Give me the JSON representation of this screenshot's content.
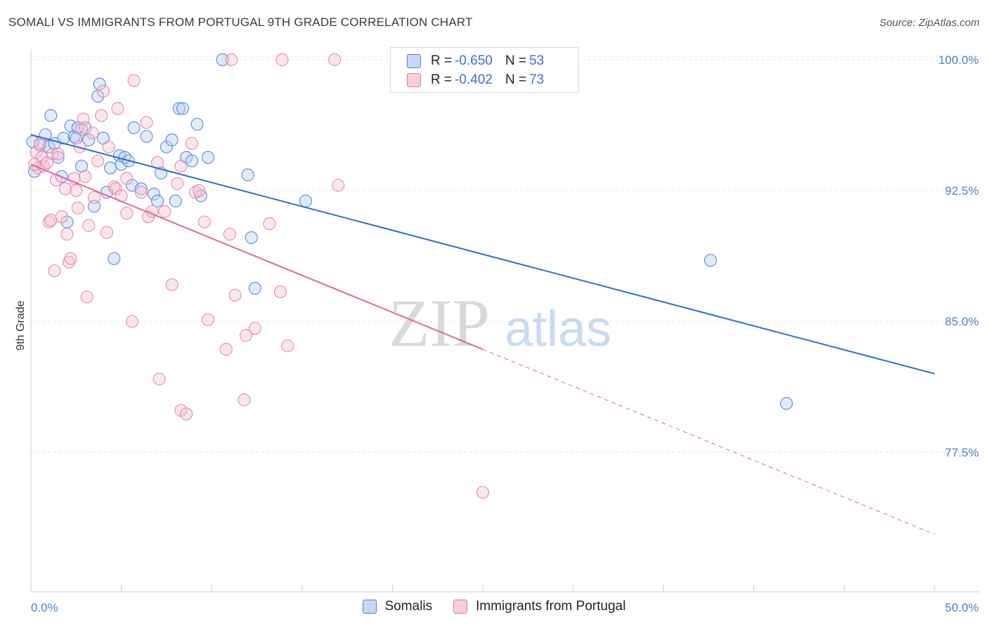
{
  "header": {
    "title": "SOMALI VS IMMIGRANTS FROM PORTUGAL 9TH GRADE CORRELATION CHART",
    "source": "Source: ZipAtlas.com"
  },
  "watermark": {
    "zip": "ZIP",
    "atlas": "atlas"
  },
  "colors": {
    "blue": "#4a7fd4",
    "blue_fill": "#b8d0f3",
    "blue_line": "#2a6fd1",
    "pink": "#e0779d",
    "pink_fill": "#f7c0d2",
    "pink_line": "#e0679a"
  },
  "legend": {
    "rows": [
      {
        "r_label": "R = ",
        "r_value": "-0.650",
        "n_label": "N = ",
        "n_value": "53"
      },
      {
        "r_label": "R = ",
        "r_value": "-0.402",
        "n_label": "N = ",
        "n_value": "73"
      }
    ]
  },
  "bottom_legend": [
    {
      "label": "Somalis"
    },
    {
      "label": "Immigrants from Portugal"
    }
  ],
  "chart_data": {
    "type": "scatter",
    "title": "SOMALI VS IMMIGRANTS FROM PORTUGAL 9TH GRADE CORRELATION CHART",
    "ylabel": "9th Grade",
    "xlabel": "",
    "x_tick_labels": [
      "0.0%",
      "50.0%"
    ],
    "y_tick_labels": [
      "100.0%",
      "92.5%",
      "85.0%",
      "77.5%"
    ],
    "y_ticks": [
      100.0,
      92.5,
      85.0,
      77.5
    ],
    "xlim": [
      0,
      50
    ],
    "ylim": [
      69.5,
      100.6
    ],
    "grid": true,
    "legend_position": "top-center",
    "series": [
      {
        "name": "Somalis",
        "color": "#4a7fd4",
        "r": -0.65,
        "n": 53,
        "trend": {
          "x": [
            0,
            50
          ],
          "y": [
            95.7,
            82.0
          ],
          "extrapolated": false
        },
        "points": [
          [
            0.2,
            93.6
          ],
          [
            0.5,
            95.1
          ],
          [
            0.8,
            95.7
          ],
          [
            1.0,
            95.0
          ],
          [
            1.1,
            96.8
          ],
          [
            1.3,
            95.2
          ],
          [
            1.5,
            94.4
          ],
          [
            1.7,
            93.3
          ],
          [
            1.8,
            95.5
          ],
          [
            2.0,
            90.7
          ],
          [
            2.2,
            96.2
          ],
          [
            2.4,
            95.6
          ],
          [
            2.6,
            96.1
          ],
          [
            2.8,
            93.9
          ],
          [
            3.0,
            96.1
          ],
          [
            3.2,
            95.4
          ],
          [
            3.5,
            91.6
          ],
          [
            3.7,
            97.9
          ],
          [
            3.8,
            98.6
          ],
          [
            4.0,
            95.5
          ],
          [
            4.2,
            92.4
          ],
          [
            4.4,
            93.8
          ],
          [
            4.6,
            88.6
          ],
          [
            4.9,
            94.5
          ],
          [
            5.0,
            94.0
          ],
          [
            5.2,
            94.4
          ],
          [
            5.4,
            94.2
          ],
          [
            5.6,
            92.8
          ],
          [
            5.7,
            96.1
          ],
          [
            6.1,
            92.6
          ],
          [
            6.4,
            95.6
          ],
          [
            6.8,
            92.3
          ],
          [
            7.0,
            91.9
          ],
          [
            7.2,
            93.5
          ],
          [
            7.5,
            95.0
          ],
          [
            7.8,
            95.4
          ],
          [
            8.0,
            91.9
          ],
          [
            8.2,
            97.2
          ],
          [
            8.4,
            97.2
          ],
          [
            8.6,
            94.4
          ],
          [
            8.9,
            94.2
          ],
          [
            9.2,
            96.3
          ],
          [
            9.4,
            92.2
          ],
          [
            9.8,
            94.4
          ],
          [
            10.6,
            100.0
          ],
          [
            12.0,
            93.4
          ],
          [
            12.2,
            89.8
          ],
          [
            12.4,
            86.9
          ],
          [
            15.2,
            91.9
          ],
          [
            37.6,
            88.5
          ],
          [
            41.8,
            80.3
          ],
          [
            0.1,
            95.3
          ],
          [
            2.5,
            95.5
          ]
        ]
      },
      {
        "name": "Immigrants from Portugal",
        "color": "#e0779d",
        "r": -0.402,
        "n": 73,
        "trend": {
          "x": [
            0,
            25
          ],
          "y": [
            94.0,
            83.4
          ],
          "dashed_to": [
            50,
            72.8
          ]
        },
        "points": [
          [
            0.3,
            94.7
          ],
          [
            0.4,
            93.8
          ],
          [
            0.5,
            95.2
          ],
          [
            0.6,
            94.4
          ],
          [
            0.7,
            93.9
          ],
          [
            0.9,
            94.1
          ],
          [
            1.0,
            90.7
          ],
          [
            1.1,
            90.8
          ],
          [
            1.2,
            94.6
          ],
          [
            1.3,
            87.9
          ],
          [
            1.5,
            94.6
          ],
          [
            1.7,
            91.0
          ],
          [
            1.9,
            92.6
          ],
          [
            2.0,
            90.0
          ],
          [
            2.1,
            88.4
          ],
          [
            2.2,
            88.6
          ],
          [
            2.4,
            93.2
          ],
          [
            2.5,
            92.5
          ],
          [
            2.6,
            91.5
          ],
          [
            2.8,
            96.0
          ],
          [
            2.9,
            96.6
          ],
          [
            3.0,
            93.3
          ],
          [
            3.1,
            86.4
          ],
          [
            3.2,
            90.5
          ],
          [
            3.4,
            95.8
          ],
          [
            3.5,
            92.1
          ],
          [
            3.7,
            94.2
          ],
          [
            3.9,
            96.8
          ],
          [
            4.0,
            98.2
          ],
          [
            4.2,
            90.1
          ],
          [
            4.3,
            95.0
          ],
          [
            4.6,
            92.7
          ],
          [
            4.7,
            92.6
          ],
          [
            4.8,
            97.2
          ],
          [
            5.3,
            93.2
          ],
          [
            5.3,
            91.2
          ],
          [
            5.6,
            85.0
          ],
          [
            5.7,
            98.8
          ],
          [
            6.1,
            92.4
          ],
          [
            6.4,
            96.4
          ],
          [
            6.5,
            91.0
          ],
          [
            6.7,
            91.3
          ],
          [
            7.0,
            94.1
          ],
          [
            7.1,
            81.7
          ],
          [
            7.4,
            91.3
          ],
          [
            7.8,
            87.1
          ],
          [
            8.1,
            92.9
          ],
          [
            8.3,
            93.9
          ],
          [
            8.3,
            79.9
          ],
          [
            8.6,
            79.7
          ],
          [
            8.9,
            95.2
          ],
          [
            9.1,
            92.4
          ],
          [
            9.3,
            92.5
          ],
          [
            9.6,
            90.7
          ],
          [
            9.8,
            85.1
          ],
          [
            10.8,
            83.4
          ],
          [
            11.1,
            100.0
          ],
          [
            11.0,
            90.0
          ],
          [
            11.3,
            86.5
          ],
          [
            11.9,
            84.2
          ],
          [
            11.8,
            80.5
          ],
          [
            12.4,
            84.6
          ],
          [
            13.2,
            90.6
          ],
          [
            13.8,
            86.7
          ],
          [
            13.9,
            100.0
          ],
          [
            14.2,
            83.6
          ],
          [
            16.8,
            100.0
          ],
          [
            17.0,
            92.8
          ],
          [
            25.0,
            75.2
          ],
          [
            0.2,
            94.0
          ],
          [
            1.4,
            93.1
          ],
          [
            2.7,
            95.0
          ],
          [
            5.0,
            92.2
          ]
        ]
      }
    ]
  }
}
